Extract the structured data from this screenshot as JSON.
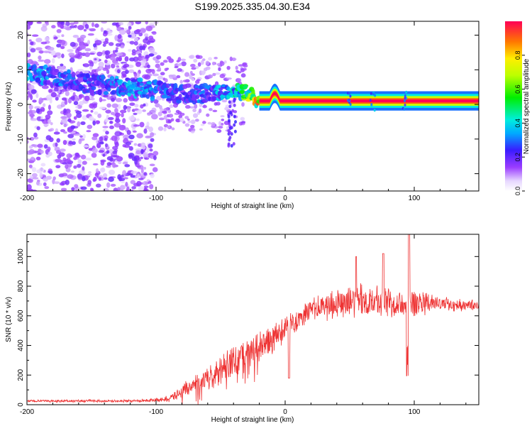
{
  "title": "S199.2025.335.04.30.E34",
  "colors": {
    "axis": "#000000",
    "snr_line": "#ee3333"
  },
  "chart_data": [
    {
      "type": "heatmap",
      "name": "spectrogram",
      "xlabel": "Height of straight line (km)",
      "ylabel": "Frequency (Hz)",
      "xlim": [
        -200,
        150
      ],
      "ylim": [
        -25,
        24
      ],
      "xticks": [
        -200,
        -100,
        0,
        100
      ],
      "yticks": [
        -20,
        -10,
        0,
        10,
        20
      ],
      "colorbar": {
        "label": "Normalized spectral amplitude",
        "range": [
          0.0,
          1.0
        ],
        "ticks": [
          "0.0",
          "0.2",
          "0.4",
          "0.6",
          "0.8"
        ],
        "tick_values": [
          0.0,
          0.2,
          0.4,
          0.6,
          0.8
        ]
      },
      "ridge": {
        "description_points": [
          {
            "x": -200,
            "freq": 9,
            "amp": 0.35
          },
          {
            "x": -180,
            "freq": 8,
            "amp": 0.3
          },
          {
            "x": -150,
            "freq": 6,
            "amp": 0.25
          },
          {
            "x": -120,
            "freq": 5,
            "amp": 0.35
          },
          {
            "x": -100,
            "freq": 4,
            "amp": 0.3
          },
          {
            "x": -80,
            "freq": 3,
            "amp": 0.25
          },
          {
            "x": -60,
            "freq": 3,
            "amp": 0.3
          },
          {
            "x": -40,
            "freq": 4,
            "amp": 0.4
          },
          {
            "x": -30,
            "freq": 3.5,
            "amp": 0.6
          },
          {
            "x": -20,
            "freq": 1,
            "amp": 0.85
          },
          {
            "x": -8,
            "freq": 3,
            "amp": 0.8
          },
          {
            "x": 0,
            "freq": 1,
            "amp": 1.0
          },
          {
            "x": 150,
            "freq": 1,
            "amp": 1.0
          }
        ]
      }
    },
    {
      "type": "line",
      "name": "snr",
      "xlabel": "Height of straight line (km)",
      "ylabel": "SNR (10 * v/v)",
      "xlim": [
        -200,
        150
      ],
      "ylim": [
        0,
        1150
      ],
      "xticks": [
        -200,
        -100,
        0,
        100
      ],
      "yticks": [
        0,
        200,
        400,
        600,
        800,
        1000
      ],
      "envelope": {
        "x": [
          -200,
          -120,
          -100,
          -90,
          -80,
          -60,
          -40,
          -20,
          -5,
          0,
          10,
          20,
          40,
          60,
          80,
          100,
          120,
          150
        ],
        "mean": [
          25,
          25,
          30,
          40,
          90,
          180,
          300,
          390,
          460,
          520,
          580,
          640,
          680,
          700,
          700,
          690,
          680,
          670
        ],
        "spread": [
          10,
          10,
          15,
          25,
          60,
          90,
          120,
          130,
          120,
          100,
          90,
          100,
          120,
          140,
          130,
          120,
          60,
          40
        ]
      }
    }
  ]
}
